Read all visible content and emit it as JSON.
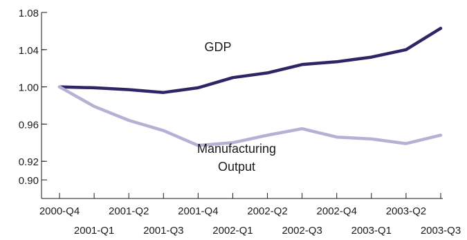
{
  "chart_data": {
    "type": "line",
    "categories": [
      "2000-Q4",
      "2001-Q1",
      "2001-Q2",
      "2001-Q3",
      "2001-Q4",
      "2002-Q1",
      "2002-Q2",
      "2002-Q3",
      "2002-Q4",
      "2003-Q1",
      "2003-Q2",
      "2003-Q3"
    ],
    "series": [
      {
        "name": "GDP",
        "color": "#2e2566",
        "values": [
          1.0,
          0.999,
          0.997,
          0.994,
          0.999,
          1.01,
          1.015,
          1.024,
          1.027,
          1.032,
          1.04,
          1.063
        ]
      },
      {
        "name": "Manufacturing Output",
        "name_lines": [
          "Manufacturing",
          "Output"
        ],
        "color": "#b6b1d4",
        "values": [
          1.0,
          0.979,
          0.964,
          0.953,
          0.937,
          0.94,
          0.948,
          0.955,
          0.946,
          0.944,
          0.939,
          0.948
        ]
      }
    ],
    "yticks": [
      "1.08",
      "1.04",
      "1.00",
      "0.96",
      "0.92",
      "0.90"
    ],
    "ylim": [
      0.88,
      1.08
    ],
    "xlabel": "",
    "ylabel": "",
    "title": "",
    "grid": false
  }
}
